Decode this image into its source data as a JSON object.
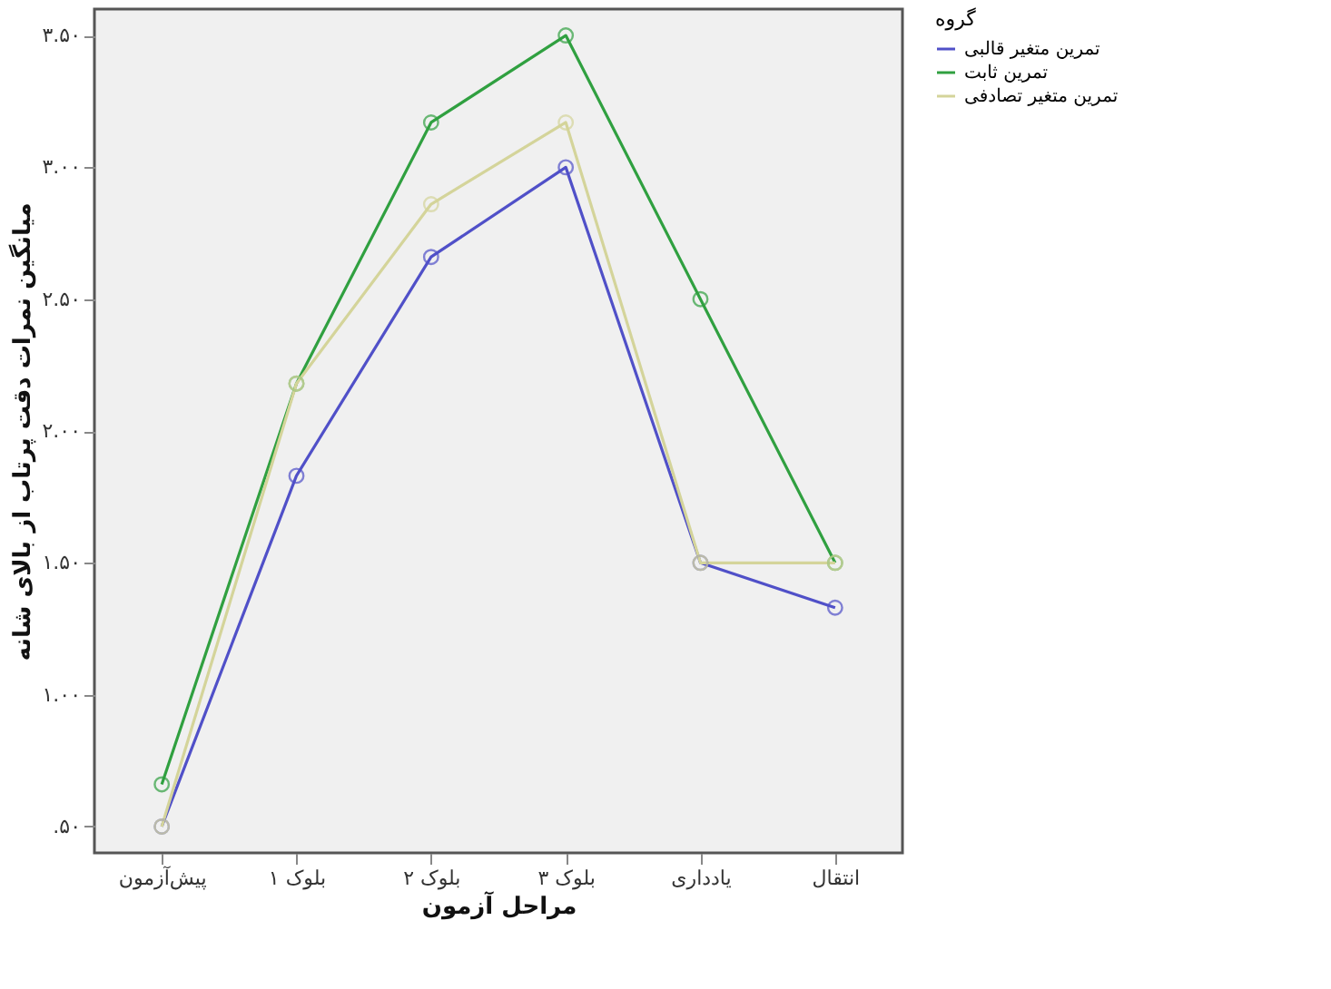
{
  "chart_data": {
    "type": "line",
    "xlabel": "مراحل آزمون",
    "ylabel": "میانگین نمرات دقت پرتاب از بالای شانه",
    "legend_title": "گروه",
    "categories": [
      "پیش‌آزمون",
      "بلوک ۱",
      "بلوک ۲",
      "بلوک ۳",
      "یادداری",
      "انتقال"
    ],
    "series": [
      {
        "name": "تمرین متغیر قالبی",
        "color": "#5050c8",
        "values": [
          0.5,
          1.83,
          2.66,
          3.0,
          1.5,
          1.33
        ]
      },
      {
        "name": "تمرین ثابت",
        "color": "#30a040",
        "values": [
          0.66,
          2.18,
          3.17,
          3.5,
          2.5,
          1.5
        ]
      },
      {
        "name": "تمرین متغیر تصادفی",
        "color": "#d4d49a",
        "values": [
          0.5,
          2.18,
          2.86,
          3.17,
          1.5,
          1.5
        ]
      }
    ],
    "ylim": [
      0.4,
      3.6
    ],
    "yticks": [
      {
        "value": 0.5,
        "label": ".۵۰"
      },
      {
        "value": 1.0,
        "label": "۱.۰۰"
      },
      {
        "value": 1.5,
        "label": "۱.۵۰"
      },
      {
        "value": 2.0,
        "label": "۲.۰۰"
      },
      {
        "value": 2.5,
        "label": "۲.۵۰"
      },
      {
        "value": 3.0,
        "label": "۳.۰۰"
      },
      {
        "value": 3.5,
        "label": "۳.۵۰"
      }
    ],
    "grid": false,
    "legend": "top right",
    "marker": "circle",
    "line_style": "solid"
  }
}
